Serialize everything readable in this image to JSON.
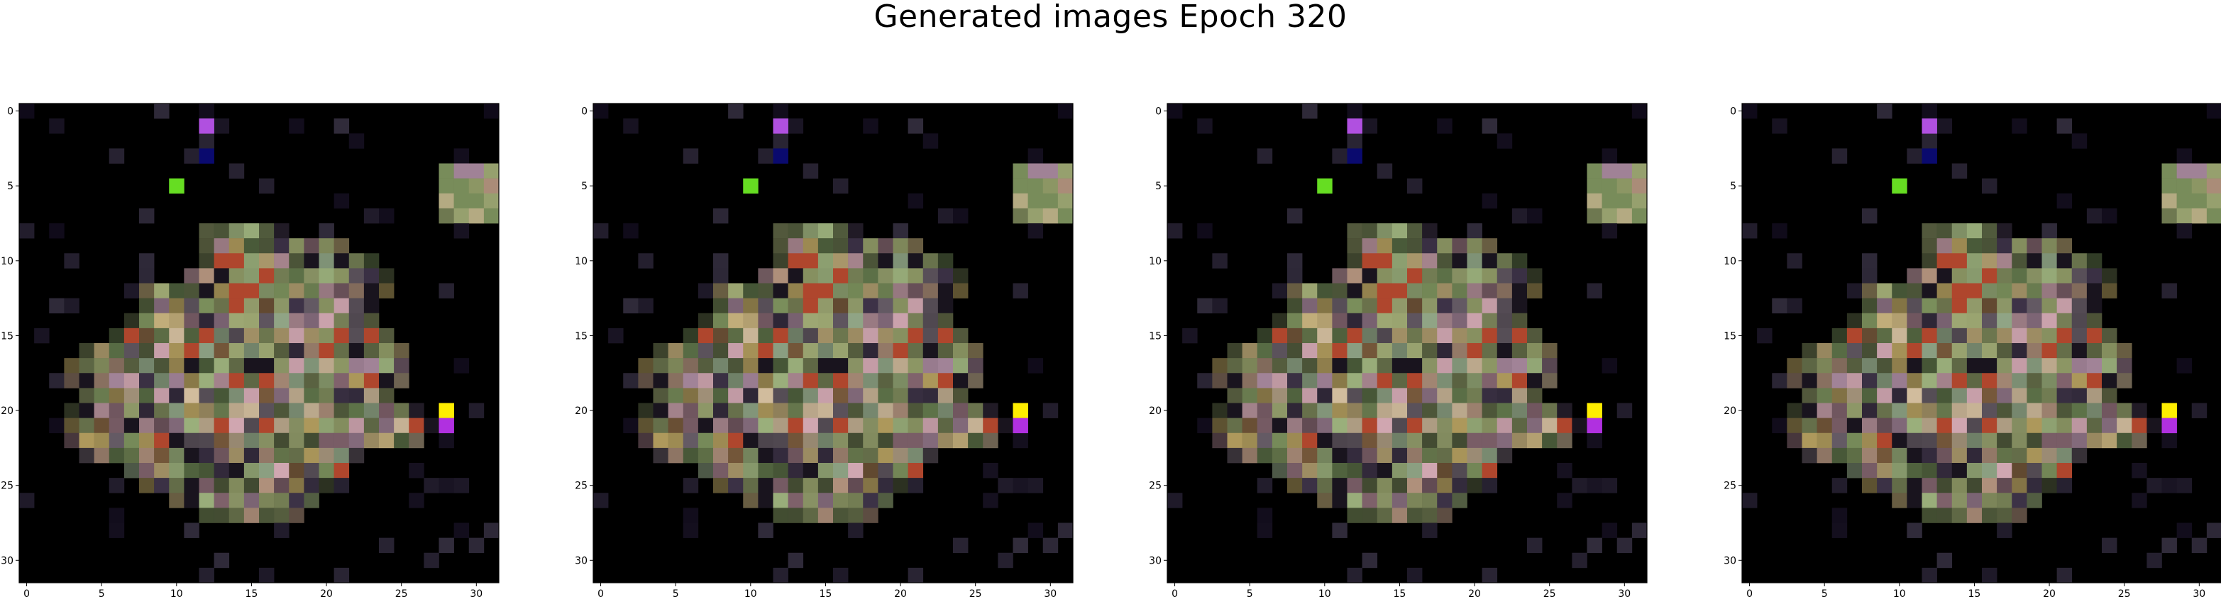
{
  "figure": {
    "title": "Generated images Epoch 320"
  },
  "chart_data": {
    "type": "heatmap",
    "grid_size": 32,
    "xlim": [
      -0.5,
      31.5
    ],
    "ylim": [
      31.5,
      -0.5
    ],
    "xticks": [
      0,
      5,
      10,
      15,
      20,
      25,
      30
    ],
    "yticks": [
      0,
      5,
      10,
      15,
      20,
      25,
      30
    ],
    "background": "#000000",
    "panels": [
      {
        "name": "generated-image-1"
      },
      {
        "name": "generated-image-2"
      },
      {
        "name": "generated-image-3"
      },
      {
        "name": "generated-image-4"
      }
    ],
    "palette": {
      "purple": "#b050e0",
      "navy": "#0a0a6e",
      "green": "#66dd22",
      "yellow": "#ffee00",
      "violet": "#b030e0"
    },
    "bright_pixels": [
      {
        "x": 12,
        "y": 1,
        "color": "purple"
      },
      {
        "x": 12,
        "y": 3,
        "color": "navy"
      },
      {
        "x": 10,
        "y": 5,
        "color": "green"
      },
      {
        "x": 28,
        "y": 20,
        "color": "yellow"
      },
      {
        "x": 28,
        "y": 21,
        "color": "violet"
      }
    ],
    "blob_rows": [
      {
        "y": 8,
        "x_from": 12,
        "x_to": 17
      },
      {
        "y": 9,
        "x_from": 12,
        "x_to": 21
      },
      {
        "y": 10,
        "x_from": 12,
        "x_to": 23
      },
      {
        "y": 11,
        "x_from": 11,
        "x_to": 24
      },
      {
        "y": 12,
        "x_from": 8,
        "x_to": 24
      },
      {
        "y": 13,
        "x_from": 8,
        "x_to": 23
      },
      {
        "y": 14,
        "x_from": 7,
        "x_to": 23
      },
      {
        "y": 15,
        "x_from": 6,
        "x_to": 24
      },
      {
        "y": 16,
        "x_from": 4,
        "x_to": 25
      },
      {
        "y": 17,
        "x_from": 3,
        "x_to": 25
      },
      {
        "y": 18,
        "x_from": 3,
        "x_to": 25
      },
      {
        "y": 19,
        "x_from": 4,
        "x_to": 24
      },
      {
        "y": 20,
        "x_from": 3,
        "x_to": 26
      },
      {
        "y": 21,
        "x_from": 3,
        "x_to": 27
      },
      {
        "y": 22,
        "x_from": 3,
        "x_to": 26
      },
      {
        "y": 23,
        "x_from": 4,
        "x_to": 22
      },
      {
        "y": 24,
        "x_from": 7,
        "x_to": 21
      },
      {
        "y": 25,
        "x_from": 8,
        "x_to": 20
      },
      {
        "y": 26,
        "x_from": 10,
        "x_to": 19
      },
      {
        "y": 27,
        "x_from": 12,
        "x_to": 18
      }
    ],
    "patch": {
      "x_from": 28,
      "x_to": 31,
      "y_from": 4,
      "y_to": 7
    }
  }
}
